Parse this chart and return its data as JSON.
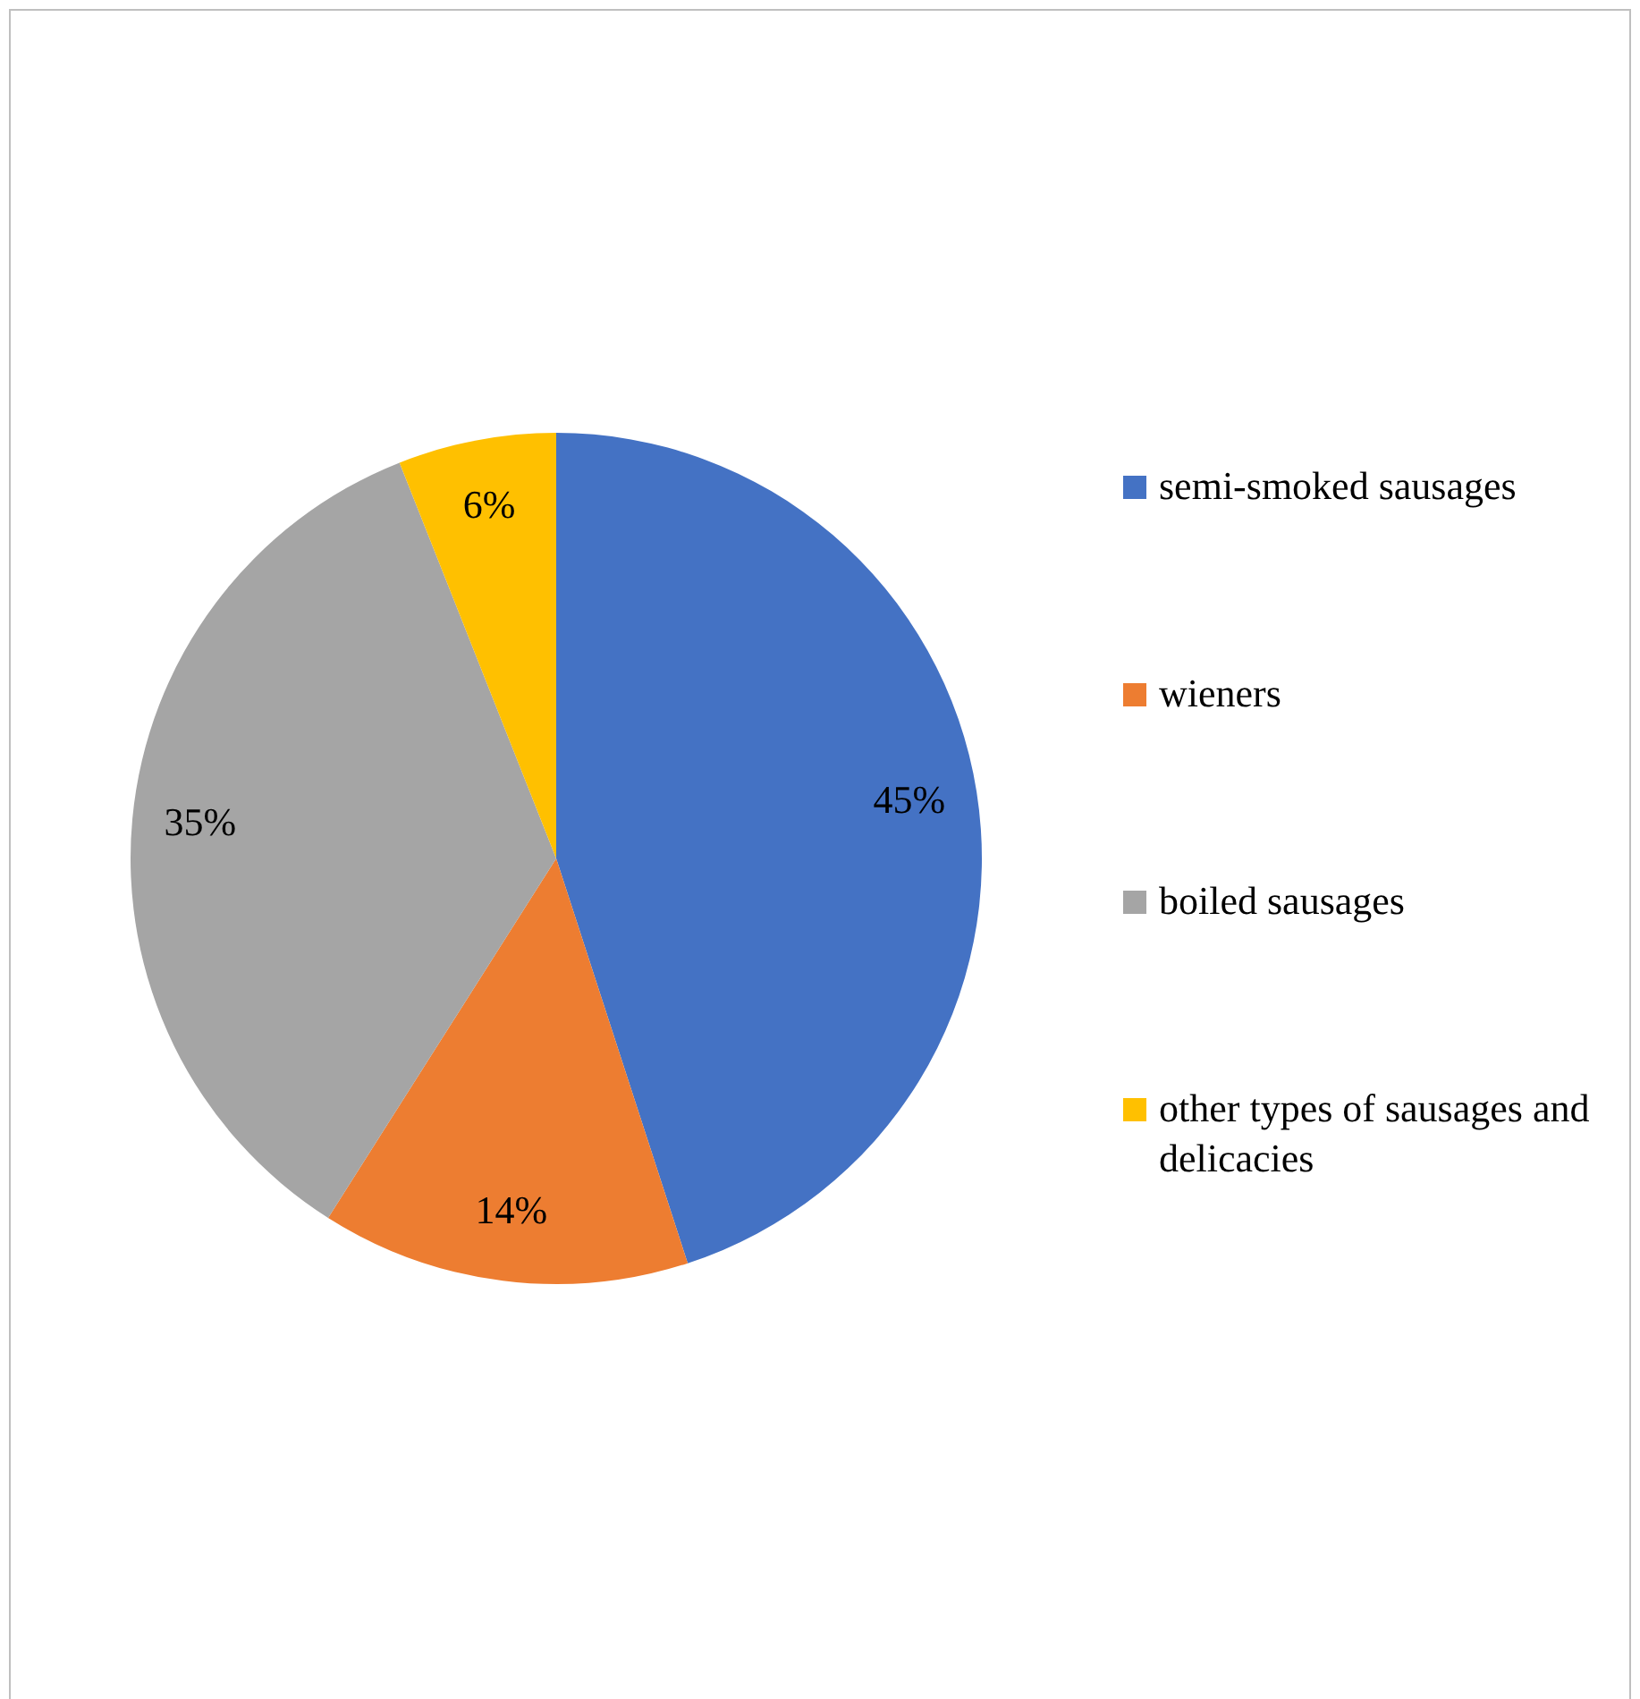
{
  "chart_data": {
    "type": "pie",
    "categories": [
      "semi-smoked sausages",
      "wieners",
      "boiled sausages",
      "other types of sausages and delicacies"
    ],
    "values": [
      45,
      14,
      35,
      6
    ],
    "colors": [
      "#4472c4",
      "#ed7d31",
      "#a5a5a5",
      "#ffc000"
    ],
    "value_labels": [
      "45%",
      "14%",
      "35%",
      "6%"
    ],
    "legend": "right"
  }
}
